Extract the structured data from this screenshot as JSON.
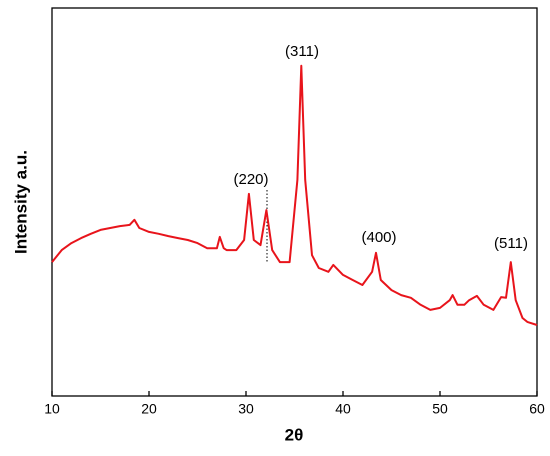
{
  "chart_data": {
    "type": "line",
    "x_label": "2θ",
    "y_label": "Intensity a.u.",
    "annotations": [
      "(220)",
      "(311)",
      "(400)",
      "(511)"
    ],
    "xlim": [
      10,
      60
    ],
    "xticks": [
      10,
      20,
      30,
      40,
      50,
      60
    ],
    "ylim": [
      0,
      100
    ],
    "series": [
      {
        "color": "#e8141b",
        "x": [
          10,
          11,
          12,
          13,
          14,
          15,
          16,
          17,
          18,
          18.5,
          19,
          20,
          21,
          22,
          23,
          24,
          25,
          26,
          27,
          27.3,
          27.7,
          28,
          29,
          29.8,
          30.3,
          30.8,
          31.5,
          32.1,
          32.7,
          33.5,
          34.5,
          35.3,
          35.7,
          36.1,
          36.8,
          37.5,
          38.5,
          39,
          40,
          41,
          42,
          43,
          43.4,
          43.9,
          45,
          46,
          47,
          48,
          49,
          50,
          51,
          51.3,
          51.8,
          52.5,
          53,
          53.8,
          54.5,
          55.5,
          56.3,
          56.8,
          57.3,
          57.8,
          58.5,
          59,
          60
        ],
        "values": [
          34.5,
          37.6,
          39.4,
          40.7,
          41.8,
          42.8,
          43.3,
          43.8,
          44.1,
          45.4,
          43.3,
          42.3,
          41.8,
          41.2,
          40.7,
          40.2,
          39.4,
          38.1,
          38.1,
          41.0,
          38.1,
          37.6,
          37.6,
          40.2,
          52.1,
          40.2,
          38.9,
          47.9,
          37.6,
          34.5,
          34.5,
          55.7,
          85.1,
          55.7,
          36.3,
          33.0,
          32.0,
          33.8,
          31.2,
          29.9,
          28.6,
          32.0,
          36.9,
          29.9,
          27.3,
          26.0,
          25.3,
          23.5,
          22.2,
          22.7,
          24.7,
          26.0,
          23.5,
          23.5,
          24.7,
          25.8,
          23.5,
          22.2,
          25.5,
          25.3,
          34.5,
          24.7,
          20.1,
          19.1,
          18.3
        ]
      }
    ]
  }
}
